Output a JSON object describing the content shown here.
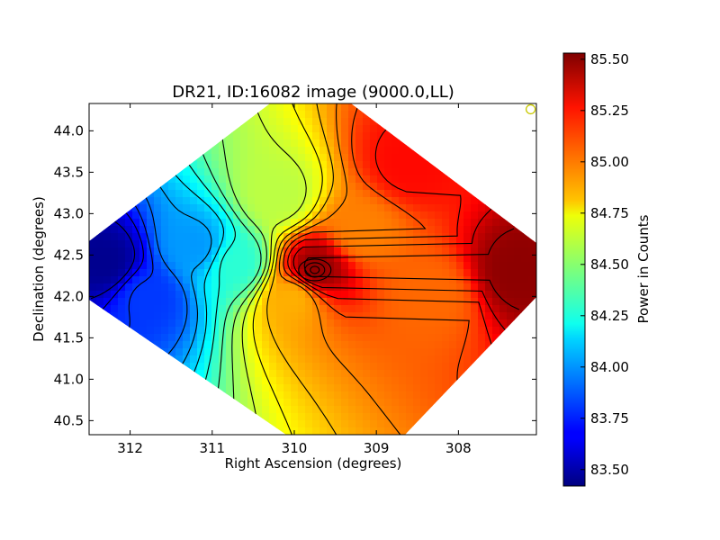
{
  "chart_data": {
    "type": "heatmap",
    "title": "DR21, ID:16082 image (9000.0,LL)",
    "xlabel": "Right Ascension (degrees)",
    "ylabel": "Declination (degrees)",
    "xlim": [
      312.5,
      307.05
    ],
    "ylim": [
      40.33,
      44.33
    ],
    "x_ticks": [
      312,
      311,
      310,
      309,
      308
    ],
    "y_ticks": [
      40.5,
      41.0,
      41.5,
      42.0,
      42.5,
      43.0,
      43.5,
      44.0
    ],
    "colorbar": {
      "label": "Power in Counts",
      "range": [
        83.42,
        85.53
      ],
      "ticks": [
        83.5,
        83.75,
        84.0,
        84.25,
        84.5,
        84.75,
        85.0,
        85.25,
        85.5
      ],
      "colormap": "jet"
    },
    "grid": false,
    "map_footprint": "diamond",
    "contours": "black lines",
    "gradient": "low in the east (left), high in the west (right)",
    "field_samples": [
      {
        "ra": 312.3,
        "dec": 42.4,
        "value": 83.45
      },
      {
        "ra": 311.8,
        "dec": 42.0,
        "value": 83.8
      },
      {
        "ra": 311.2,
        "dec": 42.6,
        "value": 84.0
      },
      {
        "ra": 310.7,
        "dec": 42.4,
        "value": 84.3
      },
      {
        "ra": 310.2,
        "dec": 43.2,
        "value": 84.6
      },
      {
        "ra": 310.0,
        "dec": 42.0,
        "value": 84.9
      },
      {
        "ra": 309.75,
        "dec": 42.32,
        "value": 85.5
      },
      {
        "ra": 309.2,
        "dec": 42.8,
        "value": 85.0
      },
      {
        "ra": 308.6,
        "dec": 43.6,
        "value": 85.25
      },
      {
        "ra": 308.3,
        "dec": 42.0,
        "value": 85.05
      },
      {
        "ra": 307.3,
        "dec": 42.3,
        "value": 85.5
      }
    ],
    "marker": {
      "shape": "circle",
      "color": "#c8c800",
      "ra": 307.12,
      "dec": 44.26
    }
  }
}
